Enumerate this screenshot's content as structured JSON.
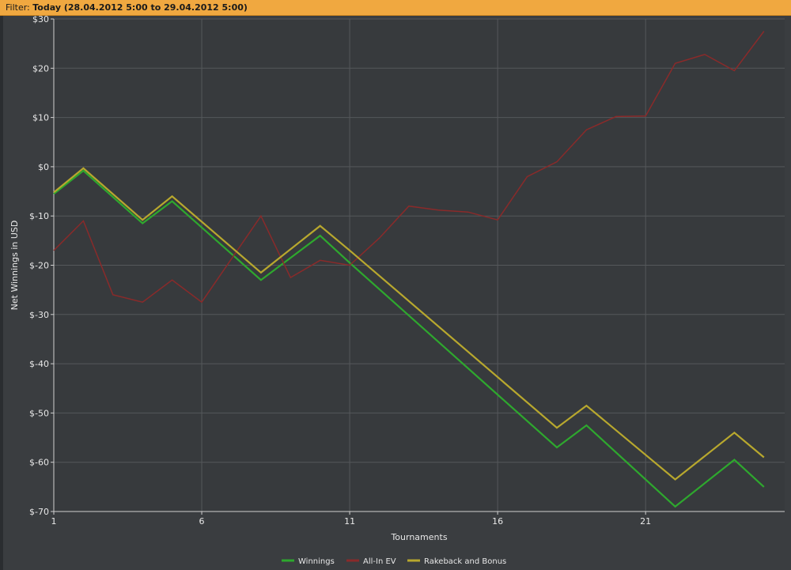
{
  "filter": {
    "label": "Filter:",
    "value": "Today (28.04.2012 5:00 to 29.04.2012 5:00)"
  },
  "colors": {
    "background": "#3a3d40",
    "plot_background": "#373a3d",
    "grid": "#55585b",
    "axis": "#d0d0d0",
    "filter_bar": "#f0a840"
  },
  "chart_data": {
    "type": "line",
    "title": "",
    "xlabel": "Tournaments",
    "ylabel": "Net Winnings in USD",
    "xlim": [
      1,
      25.7
    ],
    "ylim": [
      -70,
      30
    ],
    "x_ticks": [
      1,
      6,
      11,
      16,
      21
    ],
    "x_tick_labels": [
      "1",
      "6",
      "11",
      "16",
      "21"
    ],
    "y_ticks": [
      30,
      20,
      10,
      0,
      -10,
      -20,
      -30,
      -40,
      -50,
      -60,
      -70
    ],
    "y_tick_labels": [
      "$30",
      "$20",
      "$10",
      "$0",
      "$-10",
      "$-20",
      "$-30",
      "$-40",
      "$-50",
      "$-60",
      "$-70"
    ],
    "grid": true,
    "legend_position": "bottom",
    "series": [
      {
        "name": "Winnings",
        "color": "#2ea82e",
        "x": [
          1,
          2,
          4,
          5,
          8,
          10,
          11,
          18,
          19,
          22,
          24,
          25
        ],
        "values": [
          -5.5,
          -0.8,
          -11.5,
          -7,
          -23,
          -14,
          -19.5,
          -57,
          -52.5,
          -69,
          -59.5,
          -65
        ]
      },
      {
        "name": "All-In EV",
        "color": "#8a2a2a",
        "x": [
          1,
          2,
          3,
          4,
          5,
          6,
          8,
          9,
          10,
          11,
          12,
          13,
          14,
          15,
          16,
          17,
          18,
          19,
          20,
          21,
          22,
          23,
          24,
          25
        ],
        "values": [
          -17,
          -11,
          -26,
          -27.5,
          -23,
          -27.5,
          -10,
          -22.5,
          -19,
          -20,
          -14.5,
          -8,
          -8.8,
          -9.2,
          -10.8,
          -2,
          1,
          7.5,
          10.2,
          10.3,
          21,
          22.8,
          19.5,
          27.5
        ]
      },
      {
        "name": "Rakeback and Bonus",
        "color": "#b8a82e",
        "x": [
          1,
          2,
          4,
          5,
          8,
          10,
          11,
          18,
          19,
          22,
          24,
          25
        ],
        "values": [
          -5.2,
          -0.3,
          -10.8,
          -6,
          -21.5,
          -12,
          -17,
          -53,
          -48.5,
          -63.5,
          -54,
          -59
        ]
      }
    ]
  }
}
